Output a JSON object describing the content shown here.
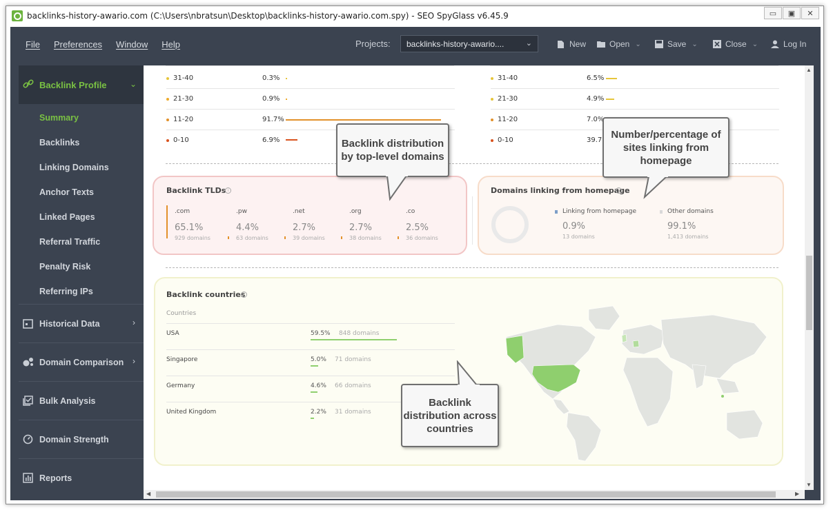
{
  "window": {
    "title": "backlinks-history-awario.com (C:\\Users\\nbratsun\\Desktop\\backlinks-history-awario.com.spy) - SEO SpyGlass v6.45.9",
    "controls": [
      "▭",
      "▣",
      "✕"
    ]
  },
  "menu": {
    "items": [
      "File",
      "Preferences",
      "Window",
      "Help"
    ],
    "projects_label": "Projects:",
    "project_value": "backlinks-history-awario....",
    "toolbar": {
      "new": "New",
      "open": "Open",
      "save": "Save",
      "close": "Close",
      "login": "Log In"
    }
  },
  "sidebar": {
    "section": "Backlink Profile",
    "sub_items": [
      "Summary",
      "Backlinks",
      "Linking Domains",
      "Anchor Texts",
      "Linked Pages",
      "Referral Traffic",
      "Penalty Risk",
      "Referring IPs"
    ],
    "active": "Summary",
    "sections": [
      "Historical Data",
      "Domain Comparison",
      "Bulk Analysis",
      "Domain Strength",
      "Reports"
    ]
  },
  "distribution_left": [
    {
      "label": "31-40",
      "pct": "0.3%",
      "value": 0.3,
      "color": "#e6c53a"
    },
    {
      "label": "21-30",
      "pct": "0.9%",
      "value": 0.9,
      "color": "#eeab2b"
    },
    {
      "label": "11-20",
      "pct": "91.7%",
      "value": 91.7,
      "color": "#e2912a"
    },
    {
      "label": "0-10",
      "pct": "6.9%",
      "value": 6.9,
      "color": "#d9531e"
    }
  ],
  "distribution_right": [
    {
      "label": "31-40",
      "pct": "6.5%",
      "value": 6.5,
      "color": "#e6c53a"
    },
    {
      "label": "21-30",
      "pct": "4.9%",
      "value": 4.9,
      "color": "#eeab2b"
    },
    {
      "label": "11-20",
      "pct": "7.0%",
      "value": 7.0,
      "color": "#e2912a"
    },
    {
      "label": "0-10",
      "pct": "39.7",
      "value": 39.7,
      "color": "#d9531e"
    }
  ],
  "tlds": {
    "title": "Backlink TLDs",
    "items": [
      {
        "name": ".com",
        "pct": "65.1%",
        "domains": "929 domains"
      },
      {
        "name": ".pw",
        "pct": "4.4%",
        "domains": "63 domains"
      },
      {
        "name": ".net",
        "pct": "2.7%",
        "domains": "39 domains"
      },
      {
        "name": ".org",
        "pct": "2.7%",
        "domains": "38 domains"
      },
      {
        "name": ".co",
        "pct": "2.5%",
        "domains": "36 domains"
      }
    ]
  },
  "homepage": {
    "title": "Domains linking from homepage",
    "linking_label": "Linking from homepage",
    "linking_pct": "0.9%",
    "linking_domains": "13 domains",
    "other_label": "Other domains",
    "other_pct": "99.1%",
    "other_domains": "1,413 domains"
  },
  "countries": {
    "title": "Backlink countries",
    "header": "Countries",
    "rows": [
      {
        "name": "USA",
        "pct": "59.5%",
        "domains": "848 domains",
        "value": 59.5
      },
      {
        "name": "Singapore",
        "pct": "5.0%",
        "domains": "71 domains",
        "value": 5.0
      },
      {
        "name": "Germany",
        "pct": "4.6%",
        "domains": "66 domains",
        "value": 4.6
      },
      {
        "name": "United Kingdom",
        "pct": "2.2%",
        "domains": "31 domains",
        "value": 2.2
      }
    ]
  },
  "callouts": {
    "tld": "Backlink distribution by top-level domains",
    "homepage": "Number/percentage of sites linking from homepage",
    "countries": "Backlink distribution across countries"
  },
  "colors": {
    "accent_green": "#7ac143",
    "sidebar_bg": "#3b4350",
    "tld_card_border": "#f2c6c6",
    "tld_card_bg": "#fdf2f2",
    "homepage_card_border": "#f7dcc9",
    "homepage_card_bg": "#fdf7f3",
    "country_card_border": "#f1f1cc",
    "country_card_bg": "#fdfdf3",
    "map_land": "#e2e4e0",
    "map_highlight": "#8fcf6e"
  }
}
